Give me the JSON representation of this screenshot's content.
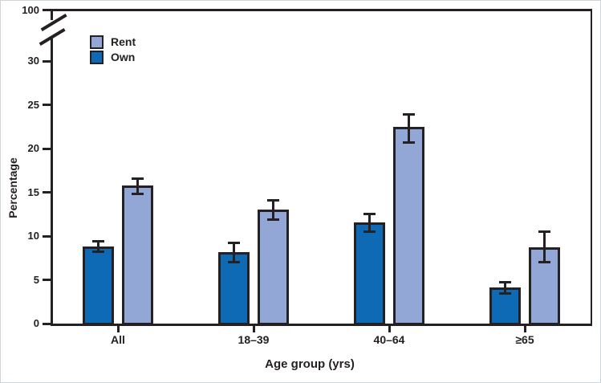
{
  "figure": {
    "background": "#ffffff",
    "frame_color": "#252122",
    "border_color": "#cfd4d8"
  },
  "chart_data": {
    "type": "bar",
    "title": "",
    "xlabel": "Age group (yrs)",
    "ylabel": "Percentage",
    "categories": [
      "All",
      "18–39",
      "40–64",
      "≥65"
    ],
    "series": [
      {
        "name": "Rent",
        "color": "#93a7d7",
        "values": [
          15.6,
          12.9,
          22.3,
          8.6
        ],
        "ci_low": [
          14.8,
          11.9,
          20.7,
          7.0
        ],
        "ci_high": [
          16.6,
          14.1,
          23.9,
          10.5
        ]
      },
      {
        "name": "Own",
        "color": "#0e6ab5",
        "values": [
          8.7,
          8.0,
          11.4,
          4.0
        ],
        "ci_low": [
          8.2,
          7.0,
          10.5,
          3.4
        ],
        "ci_high": [
          9.4,
          9.2,
          12.5,
          4.7
        ]
      }
    ],
    "bar_order_in_group": [
      "Own",
      "Rent"
    ],
    "error_bars": true,
    "y_axis": {
      "ticks": [
        0,
        5,
        10,
        15,
        20,
        25,
        30
      ],
      "break_to_value": 100,
      "axis_break": true,
      "range_shown": [
        0,
        30
      ]
    },
    "legend": {
      "position": "top-left-inside"
    },
    "grid": "off"
  }
}
